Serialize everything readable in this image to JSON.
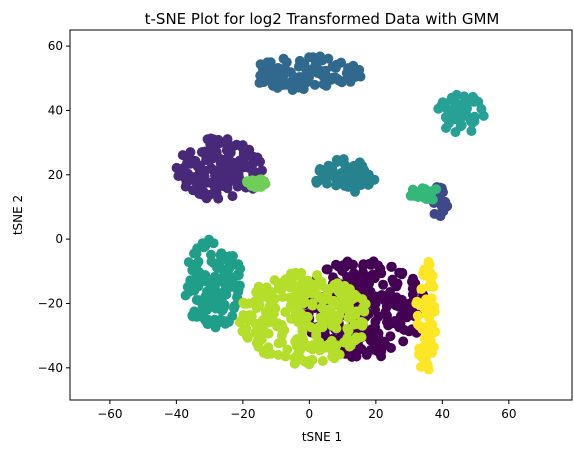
{
  "chart_data": {
    "type": "scatter",
    "title": "t-SNE Plot for log2 Transformed Data with GMM",
    "xlabel": "tSNE 1",
    "ylabel": "tSNE 2",
    "xlim": [
      -72,
      79
    ],
    "ylim": [
      -50,
      65
    ],
    "xticks": [
      "−60",
      "−40",
      "−20",
      "0",
      "20",
      "40",
      "60"
    ],
    "yticks": [
      "−40",
      "−20",
      "0",
      "20",
      "40",
      "60"
    ],
    "xtick_values": [
      -60,
      -40,
      -20,
      0,
      20,
      40,
      60
    ],
    "ytick_values": [
      -40,
      -20,
      0,
      20,
      40,
      60
    ],
    "grid": false,
    "legend": "none",
    "colormap": "viridis",
    "clusters": [
      {
        "color": "#440154",
        "region_x": [
          -2,
          35
        ],
        "region_y": [
          -37,
          -6
        ],
        "center": [
          18,
          -20
        ]
      },
      {
        "color": "#482878",
        "region_x": [
          -40,
          -14
        ],
        "region_y": [
          12,
          32
        ],
        "center": [
          -30,
          22
        ]
      },
      {
        "color": "#3e4989",
        "region_x": [
          36,
          42
        ],
        "region_y": [
          7,
          17
        ],
        "center": [
          39,
          12
        ]
      },
      {
        "color": "#31688e",
        "region_x": [
          -18,
          16
        ],
        "region_y": [
          46,
          57
        ],
        "center": [
          0,
          52
        ]
      },
      {
        "color": "#26828e",
        "region_x": [
          1,
          20
        ],
        "region_y": [
          14,
          25
        ],
        "center": [
          10,
          19
        ]
      },
      {
        "color": "#1f9e89",
        "region_x": [
          -38,
          -20
        ],
        "region_y": [
          -28,
          0
        ],
        "center": [
          -29,
          -11
        ]
      },
      {
        "color": "#35b779",
        "region_x": [
          29,
          42
        ],
        "region_y": [
          12,
          16
        ],
        "center": [
          35,
          14
        ]
      },
      {
        "color": "#27a096",
        "region_x": [
          38,
          53
        ],
        "region_y": [
          33,
          45
        ],
        "center": [
          45,
          38
        ]
      },
      {
        "color": "#6ece58",
        "region_x": [
          -19,
          -13
        ],
        "region_y": [
          16,
          19
        ],
        "center": [
          -16,
          17
        ]
      },
      {
        "color": "#b5de2b",
        "region_x": [
          -21,
          18
        ],
        "region_y": [
          -39,
          -10
        ],
        "center": [
          -3,
          -24
        ]
      },
      {
        "color": "#fde725",
        "region_x": [
          32,
          38
        ],
        "region_y": [
          -42,
          -6
        ],
        "center": [
          35,
          -20
        ]
      }
    ]
  }
}
